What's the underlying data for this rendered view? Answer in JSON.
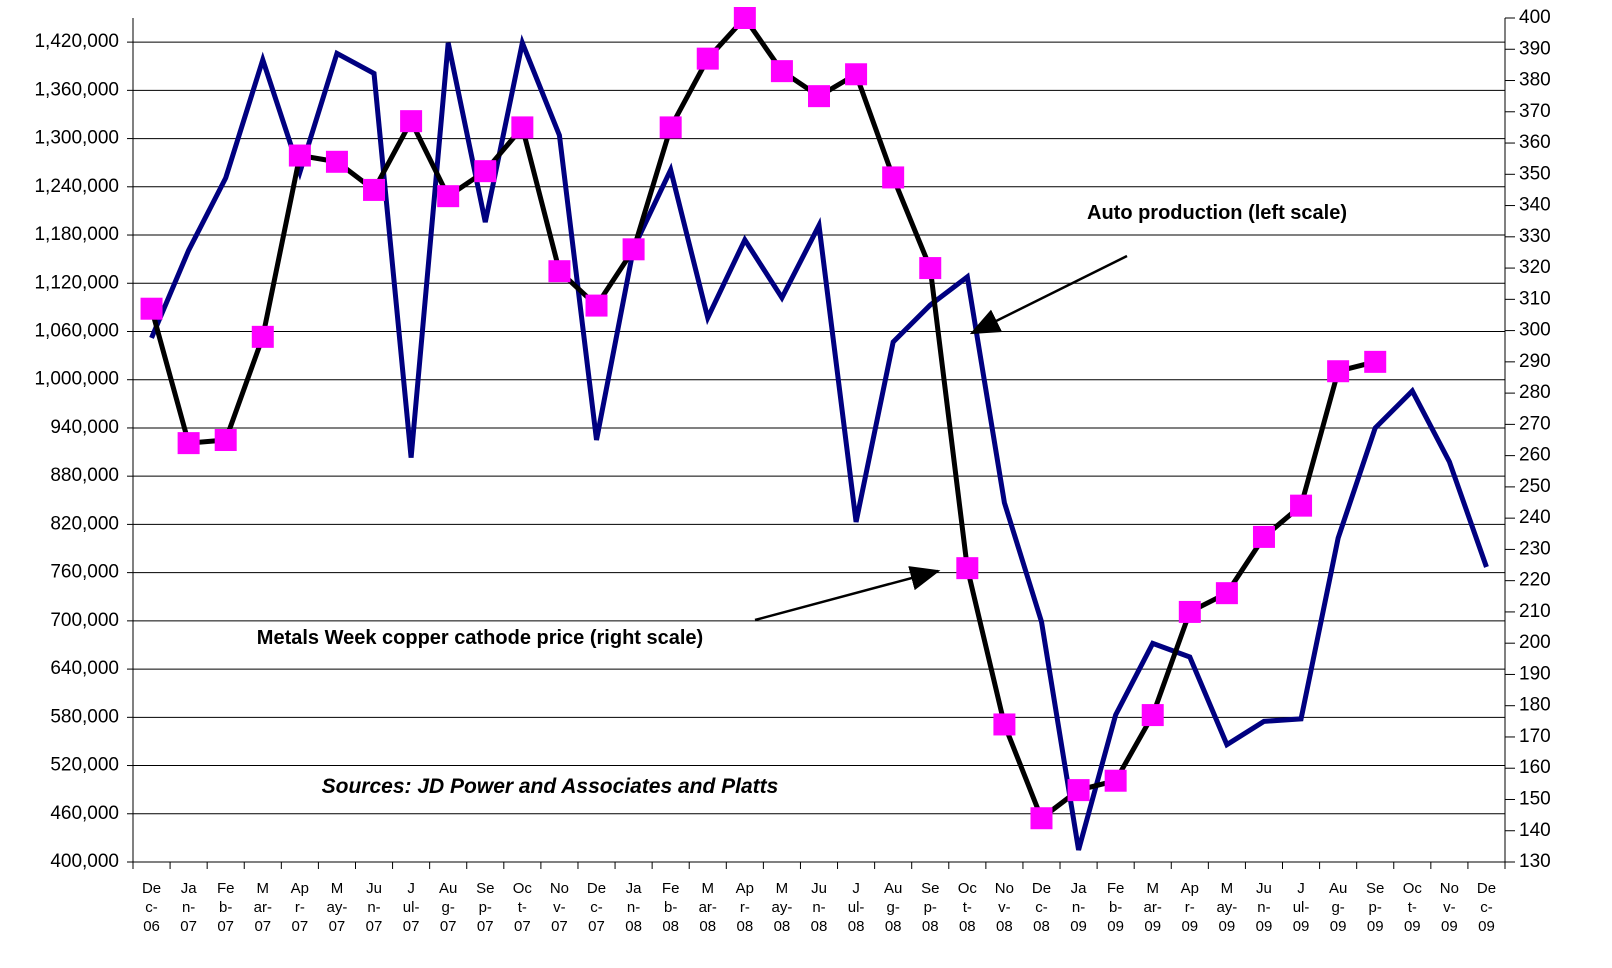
{
  "chart_data": {
    "type": "line",
    "categories": [
      "De\nc-\n06",
      "Ja\nn-\n07",
      "Fe\nb-\n07",
      "M\nar-\n07",
      "Ap\nr-\n07",
      "M\nay-\n07",
      "Ju\nn-\n07",
      "J\nul-\n07",
      "Au\ng-\n07",
      "Se\np-\n07",
      "Oc\nt-\n07",
      "No\nv-\n07",
      "De\nc-\n07",
      "Ja\nn-\n08",
      "Fe\nb-\n08",
      "M\nar-\n08",
      "Ap\nr-\n08",
      "M\nay-\n08",
      "Ju\nn-\n08",
      "J\nul-\n08",
      "Au\ng-\n08",
      "Se\np-\n08",
      "Oc\nt-\n08",
      "No\nv-\n08",
      "De\nc-\n08",
      "Ja\nn-\n09",
      "Fe\nb-\n09",
      "M\nar-\n09",
      "Ap\nr-\n09",
      "M\nay-\n09",
      "Ju\nn-\n09",
      "J\nul-\n09",
      "Au\ng-\n09",
      "Se\np-\n09",
      "Oc\nt-\n09",
      "No\nv-\n09",
      "De\nc-\n09"
    ],
    "series": [
      {
        "name": "Auto production (left scale)",
        "color": "#000080",
        "axis": "y",
        "values": [
          1052000,
          1161000,
          1251000,
          1398000,
          1258000,
          1406000,
          1381000,
          903000,
          1419000,
          1196000,
          1419000,
          1304000,
          925000,
          1164000,
          1261000,
          1077000,
          1174000,
          1102000,
          1192000,
          823000,
          1047000,
          1093000,
          1128000,
          847000,
          699000,
          415000,
          583000,
          672000,
          655000,
          546000,
          575000,
          578000,
          803000,
          940000,
          986000,
          898000,
          767000
        ]
      },
      {
        "name": "Metals Week copper cathode price (right scale)",
        "color": "#000000",
        "marker_color": "#ff00ff",
        "axis": "y2",
        "values": [
          307,
          264,
          265,
          298,
          356,
          354,
          345,
          367,
          343,
          351,
          365,
          319,
          308,
          326,
          365,
          387,
          400,
          383,
          375,
          382,
          349,
          320,
          224,
          174,
          144,
          153,
          156,
          177,
          210,
          216,
          234,
          244,
          287,
          290,
          null,
          null,
          null
        ]
      }
    ],
    "annotations": [
      "Sources: JD Power and Associates and Platts"
    ],
    "ylim": [
      400000,
      1450000
    ],
    "yticks": [
      {
        "value": 400000,
        "label": "400,000"
      },
      {
        "value": 460000,
        "label": "460,000"
      },
      {
        "value": 520000,
        "label": "520,000"
      },
      {
        "value": 580000,
        "label": "580,000"
      },
      {
        "value": 640000,
        "label": "640,000"
      },
      {
        "value": 700000,
        "label": "700,000"
      },
      {
        "value": 760000,
        "label": "760,000"
      },
      {
        "value": 820000,
        "label": "820,000"
      },
      {
        "value": 880000,
        "label": "880,000"
      },
      {
        "value": 940000,
        "label": "940,000"
      },
      {
        "value": 1000000,
        "label": "1,000,000"
      },
      {
        "value": 1060000,
        "label": "1,060,000"
      },
      {
        "value": 1120000,
        "label": "1,120,000"
      },
      {
        "value": 1180000,
        "label": "1,180,000"
      },
      {
        "value": 1240000,
        "label": "1,240,000"
      },
      {
        "value": 1300000,
        "label": "1,300,000"
      },
      {
        "value": 1360000,
        "label": "1,360,000"
      },
      {
        "value": 1420000,
        "label": "1,420,000"
      }
    ],
    "y2lim": [
      130,
      400
    ],
    "y2ticks": [
      130,
      140,
      150,
      160,
      170,
      180,
      190,
      200,
      210,
      220,
      230,
      240,
      250,
      260,
      270,
      280,
      290,
      300,
      310,
      320,
      330,
      340,
      350,
      360,
      370,
      380,
      390,
      400
    ],
    "grid": true
  }
}
